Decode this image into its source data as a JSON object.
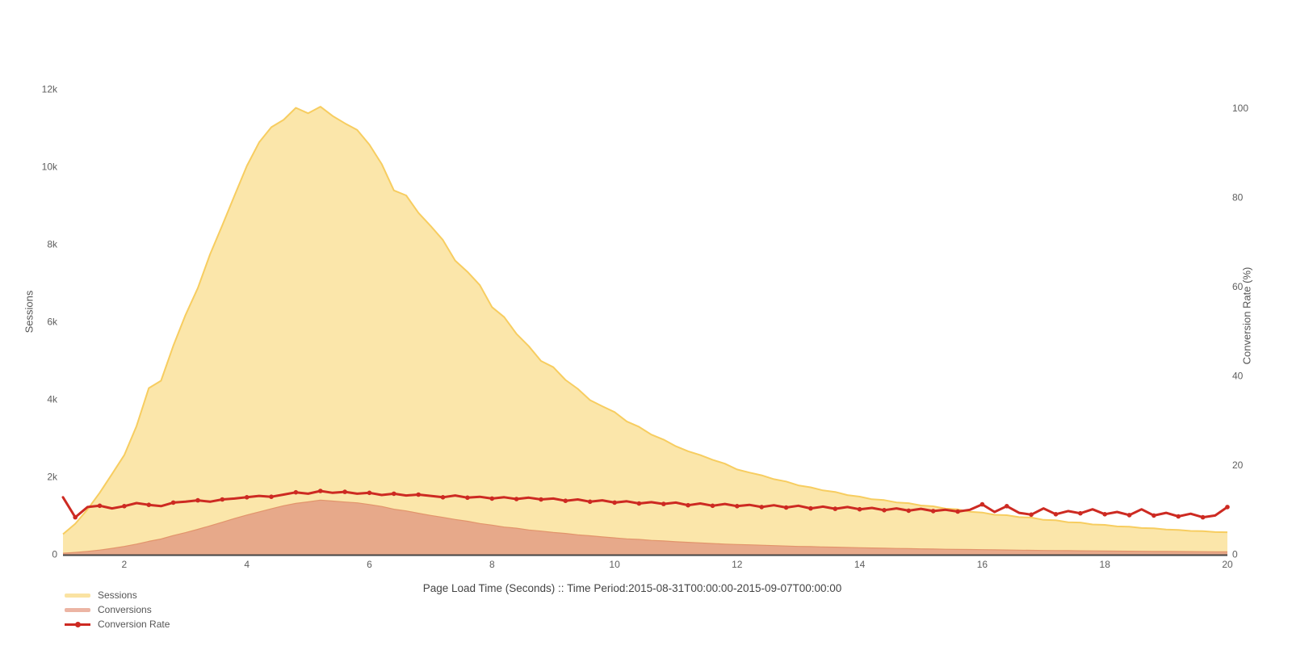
{
  "page": {
    "background": "#ffffff"
  },
  "axes": {
    "y_left_title": "Sessions",
    "y_right_title": "Conversion Rate (%)",
    "x_title": "Page Load Time (Seconds) :: Time Period:2015-08-31T00:00:00-2015-09-07T00:00:00",
    "y_left_ticks": [
      {
        "v": 0,
        "label": "0"
      },
      {
        "v": 2000,
        "label": "2k"
      },
      {
        "v": 4000,
        "label": "4k"
      },
      {
        "v": 6000,
        "label": "6k"
      },
      {
        "v": 8000,
        "label": "8k"
      },
      {
        "v": 10000,
        "label": "10k"
      },
      {
        "v": 12000,
        "label": "12k"
      }
    ],
    "y_right_ticks": [
      {
        "v": 0,
        "label": "0"
      },
      {
        "v": 20,
        "label": "20"
      },
      {
        "v": 40,
        "label": "40"
      },
      {
        "v": 60,
        "label": "60"
      },
      {
        "v": 80,
        "label": "80"
      },
      {
        "v": 100,
        "label": "100"
      }
    ],
    "x_ticks": [
      {
        "v": 2,
        "label": "2"
      },
      {
        "v": 4,
        "label": "4"
      },
      {
        "v": 6,
        "label": "6"
      },
      {
        "v": 8,
        "label": "8"
      },
      {
        "v": 10,
        "label": "10"
      },
      {
        "v": 12,
        "label": "12"
      },
      {
        "v": 14,
        "label": "14"
      },
      {
        "v": 16,
        "label": "16"
      },
      {
        "v": 18,
        "label": "18"
      },
      {
        "v": 20,
        "label": "20"
      }
    ],
    "axis_line_color": "#444444"
  },
  "legend": {
    "items": [
      {
        "label": "Sessions",
        "type": "area",
        "color": "#fae3a2"
      },
      {
        "label": "Conversions",
        "type": "area",
        "color": "#ecb5a4"
      },
      {
        "label": "Conversion Rate",
        "type": "line",
        "color": "#cd2a22"
      }
    ]
  },
  "chart_data": {
    "type": "area",
    "title": "",
    "xlabel": "Page Load Time (Seconds) :: Time Period:2015-08-31T00:00:00-2015-09-07T00:00:00",
    "ylabel": "Sessions",
    "ylabel_right": "Conversion Rate (%)",
    "xlim": [
      1,
      20
    ],
    "ylim_left": [
      0,
      12600
    ],
    "ylim_right": [
      0,
      110
    ],
    "grid": false,
    "legend_position": "bottom-left",
    "x": [
      1,
      1.2,
      1.4,
      1.6,
      1.8,
      2,
      2.2,
      2.4,
      2.6,
      2.8,
      3,
      3.2,
      3.4,
      3.6,
      3.8,
      4,
      4.2,
      4.4,
      4.6,
      4.8,
      5,
      5.2,
      5.4,
      5.6,
      5.8,
      6,
      6.2,
      6.4,
      6.6,
      6.8,
      7,
      7.2,
      7.4,
      7.6,
      7.8,
      8,
      8.2,
      8.4,
      8.6,
      8.8,
      9,
      9.2,
      9.4,
      9.6,
      9.8,
      10,
      10.2,
      10.4,
      10.6,
      10.8,
      11,
      11.2,
      11.4,
      11.6,
      11.8,
      12,
      12.2,
      12.4,
      12.6,
      12.8,
      13,
      13.2,
      13.4,
      13.6,
      13.8,
      14,
      14.2,
      14.4,
      14.6,
      14.8,
      15,
      15.2,
      15.4,
      15.6,
      15.8,
      16,
      16.2,
      16.4,
      16.6,
      16.8,
      17,
      17.2,
      17.4,
      17.6,
      17.8,
      18,
      18.2,
      18.4,
      18.6,
      18.8,
      19,
      19.2,
      19.4,
      19.6,
      19.8,
      20
    ],
    "series": [
      {
        "name": "Sessions",
        "type": "area",
        "yaxis": "left",
        "line_color": "#f7cd60",
        "fill_color": "#fbe6aa",
        "values": [
          520,
          790,
          1160,
          1590,
          2070,
          2560,
          3310,
          4290,
          4480,
          5380,
          6180,
          6870,
          7740,
          8490,
          9260,
          10020,
          10630,
          11020,
          11210,
          11520,
          11380,
          11550,
          11310,
          11120,
          10950,
          10570,
          10070,
          9390,
          9260,
          8810,
          8470,
          8110,
          7580,
          7290,
          6950,
          6380,
          6120,
          5690,
          5370,
          4990,
          4830,
          4500,
          4270,
          3980,
          3820,
          3670,
          3430,
          3290,
          3090,
          2960,
          2790,
          2660,
          2560,
          2440,
          2340,
          2190,
          2110,
          2040,
          1940,
          1880,
          1780,
          1730,
          1650,
          1610,
          1530,
          1490,
          1420,
          1400,
          1340,
          1320,
          1260,
          1240,
          1180,
          1160,
          1100,
          1080,
          1020,
          1010,
          960,
          950,
          890,
          880,
          830,
          820,
          770,
          760,
          720,
          715,
          680,
          670,
          640,
          630,
          605,
          600,
          575,
          570
        ]
      },
      {
        "name": "Conversions",
        "type": "area",
        "yaxis": "left",
        "line_color": "#e2946b",
        "fill_color": "#e7a98a",
        "values": [
          30,
          50,
          75,
          110,
          155,
          205,
          265,
          335,
          395,
          485,
          560,
          645,
          735,
          830,
          925,
          1015,
          1095,
          1175,
          1255,
          1315,
          1355,
          1400,
          1375,
          1350,
          1330,
          1285,
          1235,
          1165,
          1120,
          1060,
          1005,
          955,
          900,
          855,
          795,
          755,
          705,
          675,
          630,
          600,
          565,
          540,
          505,
          480,
          450,
          425,
          400,
          385,
          360,
          345,
          325,
          310,
          295,
          280,
          265,
          255,
          245,
          235,
          225,
          215,
          205,
          200,
          190,
          185,
          178,
          170,
          165,
          158,
          152,
          147,
          142,
          137,
          132,
          128,
          124,
          120,
          116,
          112,
          108,
          105,
          101,
          98,
          95,
          92,
          89,
          86,
          84,
          81,
          79,
          76,
          74,
          72,
          70,
          68,
          66,
          64
        ]
      },
      {
        "name": "Conversion Rate",
        "type": "line+markers",
        "yaxis": "right",
        "line_color": "#cd2a22",
        "values": [
          12.8,
          8.3,
          10.6,
          10.9,
          10.3,
          10.8,
          11.5,
          11.1,
          10.8,
          11.6,
          11.8,
          12.1,
          11.8,
          12.3,
          12.5,
          12.8,
          13.1,
          12.9,
          13.4,
          13.9,
          13.6,
          14.2,
          13.8,
          14.0,
          13.6,
          13.8,
          13.3,
          13.6,
          13.2,
          13.4,
          13.1,
          12.8,
          13.2,
          12.7,
          12.9,
          12.5,
          12.8,
          12.4,
          12.7,
          12.3,
          12.5,
          12.0,
          12.3,
          11.8,
          12.1,
          11.6,
          11.9,
          11.4,
          11.7,
          11.3,
          11.6,
          11.0,
          11.4,
          10.9,
          11.3,
          10.8,
          11.1,
          10.6,
          11.0,
          10.5,
          10.9,
          10.3,
          10.7,
          10.2,
          10.6,
          10.1,
          10.4,
          9.9,
          10.3,
          9.8,
          10.2,
          9.7,
          10.0,
          9.6,
          10.0,
          11.2,
          9.5,
          10.8,
          9.3,
          8.9,
          10.3,
          9.0,
          9.7,
          9.2,
          10.1,
          9.0,
          9.5,
          8.8,
          10.1,
          8.7,
          9.3,
          8.5,
          9.1,
          8.3,
          8.7,
          10.6
        ]
      }
    ]
  }
}
